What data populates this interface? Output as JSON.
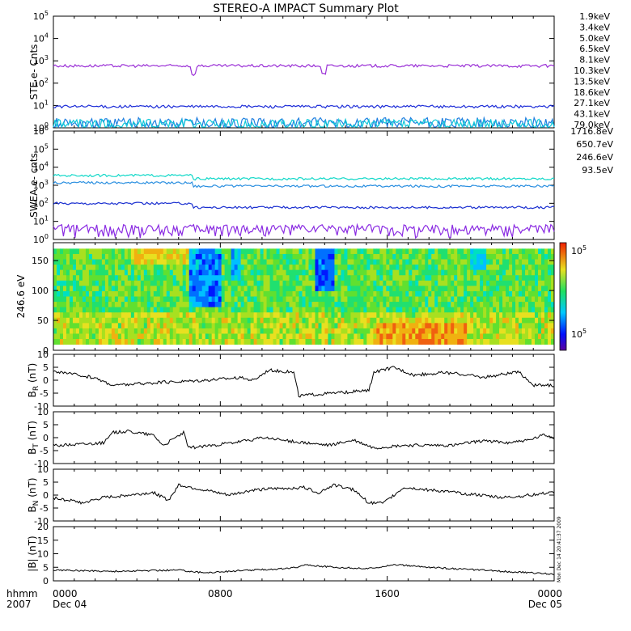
{
  "title": "STEREO-A IMPACT Summary Plot",
  "timestamp": "Mon Dec 14 20:41:37 2009",
  "chart_data": [
    {
      "type": "line",
      "id": "ste",
      "ylabel": "STE e- Cnts",
      "yscale": "log",
      "yticks": [
        {
          "base": "10",
          "exp": "0"
        },
        {
          "base": "10",
          "exp": "1"
        },
        {
          "base": "10",
          "exp": "2"
        },
        {
          "base": "10",
          "exp": "3"
        },
        {
          "base": "10",
          "exp": "4"
        },
        {
          "base": "10",
          "exp": "5"
        }
      ],
      "legend": [
        {
          "name": "1.9keV",
          "color": "#9a2fd6"
        },
        {
          "name": "3.4keV",
          "color": "#6a2ccf"
        },
        {
          "name": "5.0keV",
          "color": "#1e2ed8"
        },
        {
          "name": "6.5keV",
          "color": "#1f7fe0"
        },
        {
          "name": "8.1keV",
          "color": "#10c8d8"
        },
        {
          "name": "10.3keV",
          "color": "#18c95a"
        },
        {
          "name": "13.5keV",
          "color": "#58d418"
        },
        {
          "name": "18.6keV",
          "color": "#b4d81a"
        },
        {
          "name": "27.1keV",
          "color": "#f2cf10"
        },
        {
          "name": "43.1keV",
          "color": "#f28c10"
        },
        {
          "name": "79.0keV",
          "color": "#e12a1f"
        }
      ],
      "series": [
        {
          "name": "1.9keV",
          "level": 600,
          "dips": [
            [
              0.28,
              250
            ],
            [
              0.54,
              250
            ]
          ]
        },
        {
          "name": "5.0keV",
          "level": 9
        },
        {
          "name": "6.5keV",
          "level": 1.3
        },
        {
          "name": "8.1keV",
          "level": 1.1
        }
      ]
    },
    {
      "type": "line",
      "id": "swea",
      "ylabel": "SWEA e- cnts",
      "yscale": "log",
      "yticks": [
        {
          "base": "10",
          "exp": "0"
        },
        {
          "base": "10",
          "exp": "1"
        },
        {
          "base": "10",
          "exp": "2"
        },
        {
          "base": "10",
          "exp": "3"
        },
        {
          "base": "10",
          "exp": "4"
        },
        {
          "base": "10",
          "exp": "5"
        },
        {
          "base": "10",
          "exp": "6"
        }
      ],
      "legend": [
        {
          "name": "1716.8eV",
          "color": "#8a2be2"
        },
        {
          "name": "650.7eV",
          "color": "#1a2fd0"
        },
        {
          "name": "246.6eV",
          "color": "#2a8fe0"
        },
        {
          "name": "93.5eV",
          "color": "#10d8c8"
        }
      ],
      "series": [
        {
          "name": "93.5eV",
          "level": 2300,
          "early": 3500
        },
        {
          "name": "246.6eV",
          "level": 900,
          "early": 1400
        },
        {
          "name": "650.7eV",
          "level": 60,
          "early": 100
        },
        {
          "name": "1716.8eV",
          "level": 3
        }
      ]
    },
    {
      "type": "heatmap",
      "id": "pad",
      "ylabel": "246.6 eV",
      "yticks": [
        "0",
        "50",
        "100",
        "150"
      ],
      "ylim": [
        0,
        180
      ],
      "colorbar_labels": {
        "top_base": "10",
        "top_exp": "5",
        "bottom_base": "10",
        "bottom_exp": "5"
      }
    },
    {
      "type": "line",
      "id": "br",
      "ylabel_main": "B",
      "ylabel_sub": "R",
      "ylabel_unit": "(nT)",
      "ylim": [
        -10,
        10
      ],
      "yticks": [
        "-10",
        "-5",
        "0",
        "5",
        "10"
      ],
      "segments": [
        [
          0,
          3.5
        ],
        [
          0.08,
          1
        ],
        [
          0.12,
          -2
        ],
        [
          0.2,
          -1
        ],
        [
          0.3,
          0
        ],
        [
          0.37,
          1
        ],
        [
          0.4,
          0
        ],
        [
          0.43,
          4
        ],
        [
          0.48,
          3
        ],
        [
          0.49,
          -6
        ],
        [
          0.56,
          -5
        ],
        [
          0.63,
          -4
        ],
        [
          0.64,
          3
        ],
        [
          0.68,
          5
        ],
        [
          0.72,
          2
        ],
        [
          0.78,
          3
        ],
        [
          0.83,
          2
        ],
        [
          0.86,
          1
        ],
        [
          0.9,
          2.5
        ],
        [
          0.93,
          3
        ],
        [
          0.96,
          -2
        ],
        [
          1,
          -2
        ]
      ]
    },
    {
      "type": "line",
      "id": "bt",
      "ylabel_main": "B",
      "ylabel_sub": "T",
      "ylabel_unit": "(nT)",
      "ylim": [
        -10,
        10
      ],
      "yticks": [
        "-10",
        "-5",
        "0",
        "5",
        "10"
      ],
      "segments": [
        [
          0,
          -3
        ],
        [
          0.1,
          -2
        ],
        [
          0.12,
          2
        ],
        [
          0.15,
          2.5
        ],
        [
          0.2,
          1
        ],
        [
          0.22,
          -3
        ],
        [
          0.26,
          2
        ],
        [
          0.27,
          -4
        ],
        [
          0.36,
          -2
        ],
        [
          0.42,
          0
        ],
        [
          0.46,
          -1
        ],
        [
          0.5,
          -2
        ],
        [
          0.55,
          -3
        ],
        [
          0.6,
          -1
        ],
        [
          0.64,
          -4
        ],
        [
          0.7,
          -3
        ],
        [
          0.8,
          -3
        ],
        [
          0.86,
          -1
        ],
        [
          0.9,
          -2
        ],
        [
          0.95,
          -1
        ],
        [
          0.98,
          1
        ],
        [
          1,
          0
        ]
      ]
    },
    {
      "type": "line",
      "id": "bn",
      "ylabel_main": "B",
      "ylabel_sub": "N",
      "ylabel_unit": "(nT)",
      "ylim": [
        -10,
        10
      ],
      "yticks": [
        "-10",
        "-5",
        "0",
        "5",
        "10"
      ],
      "segments": [
        [
          0,
          -1
        ],
        [
          0.06,
          -3
        ],
        [
          0.1,
          -1
        ],
        [
          0.2,
          1
        ],
        [
          0.23,
          -2
        ],
        [
          0.25,
          4
        ],
        [
          0.3,
          2
        ],
        [
          0.35,
          0
        ],
        [
          0.4,
          2
        ],
        [
          0.5,
          3
        ],
        [
          0.53,
          1
        ],
        [
          0.56,
          4
        ],
        [
          0.6,
          2
        ],
        [
          0.63,
          -3
        ],
        [
          0.66,
          -3
        ],
        [
          0.7,
          3
        ],
        [
          0.8,
          1
        ],
        [
          0.85,
          0
        ],
        [
          0.9,
          -1
        ],
        [
          0.95,
          0
        ],
        [
          1,
          1
        ]
      ]
    },
    {
      "type": "line",
      "id": "bmag",
      "ylabel_main": "|B|",
      "ylabel_unit": "(nT)",
      "ylim": [
        0,
        20
      ],
      "yticks": [
        "0",
        "5",
        "10",
        "15",
        "20"
      ],
      "segments": [
        [
          0,
          4
        ],
        [
          0.12,
          3.5
        ],
        [
          0.25,
          4
        ],
        [
          0.3,
          3
        ],
        [
          0.4,
          4
        ],
        [
          0.46,
          4.5
        ],
        [
          0.49,
          5
        ],
        [
          0.5,
          6
        ],
        [
          0.56,
          5
        ],
        [
          0.63,
          4.5
        ],
        [
          0.68,
          6
        ],
        [
          0.75,
          5
        ],
        [
          0.85,
          4
        ],
        [
          0.95,
          3
        ],
        [
          1,
          2.5
        ]
      ]
    }
  ],
  "xaxis": {
    "corner_top": "hhmm",
    "corner_bottom": "2007",
    "ticks": [
      {
        "pos": 0,
        "top": "0000",
        "bottom": "Dec 04"
      },
      {
        "pos": 0.3333,
        "top": "0800",
        "bottom": ""
      },
      {
        "pos": 0.6667,
        "top": "1600",
        "bottom": ""
      },
      {
        "pos": 1,
        "top": "0000",
        "bottom": "Dec 05"
      }
    ]
  }
}
